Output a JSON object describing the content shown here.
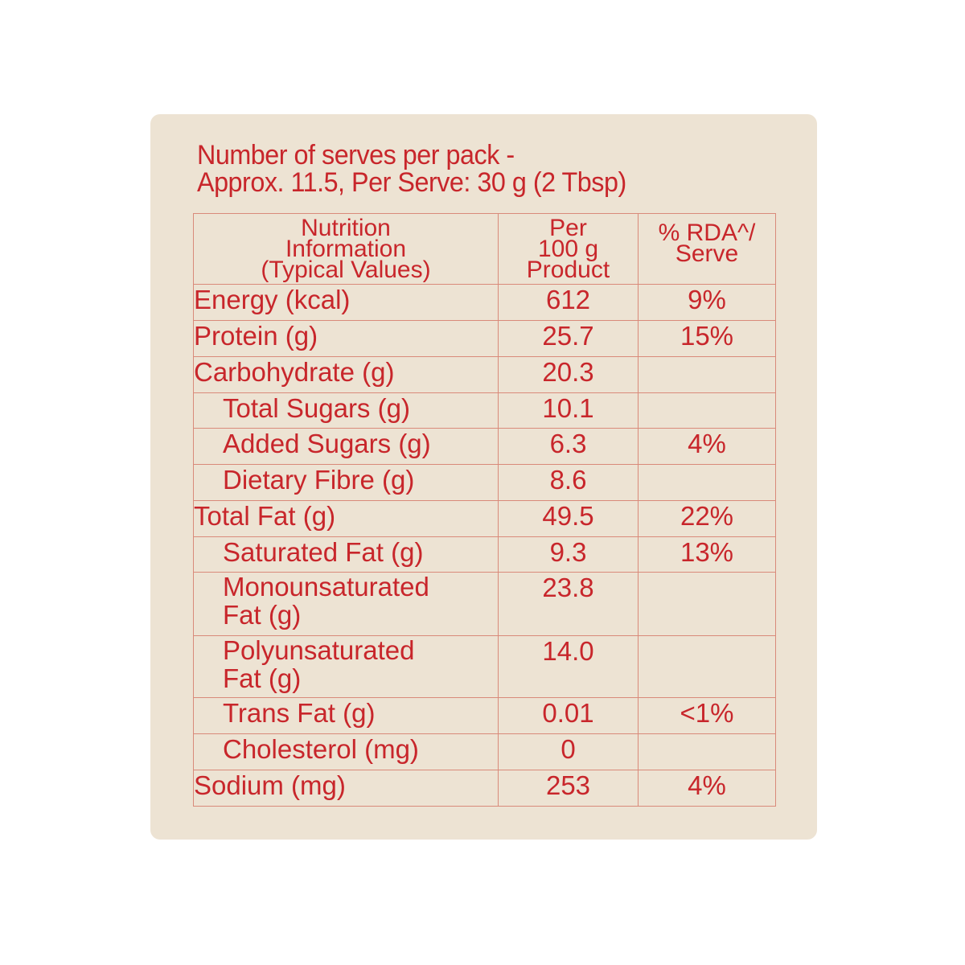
{
  "header": {
    "line1": "Number of serves per pack -",
    "line2": "Approx. 11.5, Per Serve: 30 g (2 Tbsp)"
  },
  "table": {
    "columns": [
      {
        "lines": [
          "Nutrition",
          "Information",
          "(Typical Values)"
        ]
      },
      {
        "lines": [
          "Per",
          "100 g",
          "Product"
        ]
      },
      {
        "lines": [
          "% RDA^/",
          "Serve"
        ]
      }
    ],
    "rows": [
      {
        "label": "Energy (kcal)",
        "per100g": "612",
        "rda": "9%",
        "indent": false
      },
      {
        "label": "Protein (g)",
        "per100g": "25.7",
        "rda": "15%",
        "indent": false
      },
      {
        "label": "Carbohydrate (g)",
        "per100g": "20.3",
        "rda": "",
        "indent": false
      },
      {
        "label": "Total Sugars (g)",
        "per100g": "10.1",
        "rda": "",
        "indent": true
      },
      {
        "label": "Added Sugars (g)",
        "per100g": "6.3",
        "rda": "4%",
        "indent": true
      },
      {
        "label": "Dietary Fibre (g)",
        "per100g": "8.6",
        "rda": "",
        "indent": true
      },
      {
        "label": "Total Fat (g)",
        "per100g": "49.5",
        "rda": "22%",
        "indent": false
      },
      {
        "label": "Saturated Fat (g)",
        "per100g": "9.3",
        "rda": "13%",
        "indent": true
      },
      {
        "label": "Monounsaturated\nFat (g)",
        "label_lines": [
          "Monounsaturated",
          "Fat (g)"
        ],
        "per100g": "23.8",
        "rda": "",
        "indent": true
      },
      {
        "label": "Polyunsaturated\nFat (g)",
        "label_lines": [
          "Polyunsaturated",
          "Fat (g)"
        ],
        "per100g": "14.0",
        "rda": "",
        "indent": true
      },
      {
        "label": "Trans Fat (g)",
        "per100g": "0.01",
        "rda": "<1%",
        "indent": true
      },
      {
        "label": "Cholesterol (mg)",
        "per100g": "0",
        "rda": "",
        "indent": true
      },
      {
        "label": "Sodium (mg)",
        "per100g": "253",
        "rda": "4%",
        "indent": false
      }
    ]
  },
  "colors": {
    "text": "#c8262b",
    "border": "#d98a7a",
    "card_background": "#ede3d3",
    "page_background": "#ffffff"
  }
}
